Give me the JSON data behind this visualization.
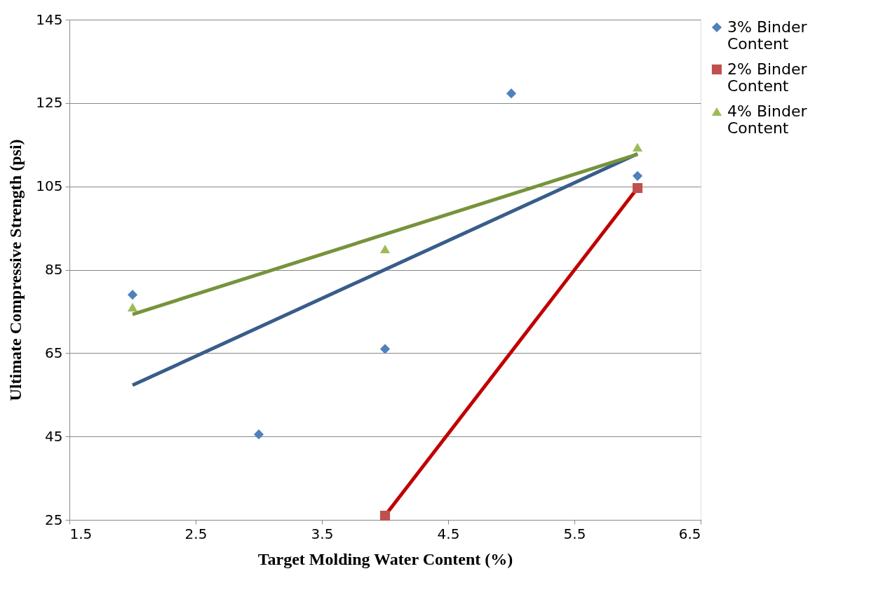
{
  "chart_data": {
    "type": "scatter",
    "xlabel": "Target Molding Water Content (%)",
    "ylabel": "Ultimate Compressive Strength (psi)",
    "xlim": [
      1.5,
      6.5
    ],
    "xticks": [
      1.5,
      2.5,
      3.5,
      4.5,
      5.5,
      6.5
    ],
    "ylim": [
      25,
      145
    ],
    "yticks": [
      25,
      45,
      65,
      85,
      105,
      125,
      145
    ],
    "grid": "y",
    "legend": "right",
    "series": [
      {
        "name": "3% Binder Content",
        "marker": "diamond",
        "color": "#4f81bd",
        "x": [
          2,
          3,
          4,
          5,
          6
        ],
        "values": [
          79,
          45.5,
          66,
          127.3,
          107.5
        ]
      },
      {
        "name": "2% Binder Content",
        "marker": "square",
        "color": "#c0504d",
        "x": [
          4,
          6
        ],
        "values": [
          26,
          104.6
        ]
      },
      {
        "name": "4% Binder Content",
        "marker": "triangle",
        "color": "#9bbb59",
        "x": [
          2,
          4,
          6
        ],
        "values": [
          76,
          90,
          114.4
        ]
      },
      {
        "type": "line",
        "marker": "none",
        "color": "#385d8a",
        "x": [
          2,
          6
        ],
        "values": [
          57.3,
          112.8
        ]
      },
      {
        "type": "line",
        "marker": "none",
        "color": "#c00000",
        "x": [
          4,
          6
        ],
        "values": [
          26,
          104.6
        ]
      },
      {
        "type": "line",
        "marker": "none",
        "color": "#77933c",
        "x": [
          2,
          6
        ],
        "values": [
          74.3,
          112.7
        ]
      }
    ]
  }
}
